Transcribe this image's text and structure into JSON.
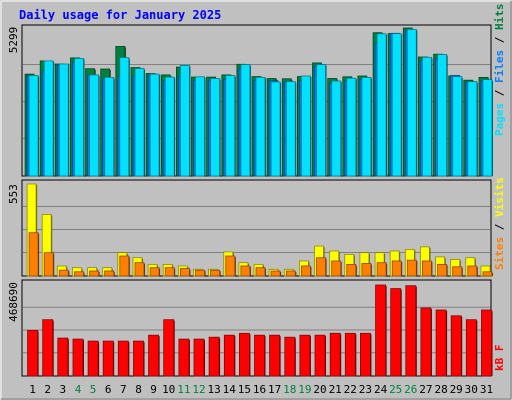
{
  "chart_data": [
    {
      "type": "bar",
      "title": "Daily usage for January 2025",
      "categories": [
        "1",
        "2",
        "3",
        "4",
        "5",
        "6",
        "7",
        "8",
        "9",
        "10",
        "11",
        "12",
        "13",
        "14",
        "15",
        "16",
        "17",
        "18",
        "19",
        "20",
        "21",
        "22",
        "23",
        "24",
        "25",
        "26",
        "27",
        "28",
        "29",
        "30",
        "31"
      ],
      "weekend_days": [
        4,
        5,
        11,
        12,
        18,
        19,
        25,
        26
      ],
      "y_max_label": "5299",
      "ylim": [
        0,
        5299
      ],
      "legend": [
        "Pages",
        "Files",
        "Hits"
      ],
      "series": [
        {
          "name": "Hits",
          "color": "#008040",
          "values": [
            3650,
            4120,
            4010,
            4230,
            3840,
            3830,
            4640,
            3880,
            3670,
            3620,
            3900,
            3540,
            3540,
            3620,
            4000,
            3560,
            3490,
            3480,
            3560,
            4050,
            3490,
            3550,
            3580,
            5130,
            5100,
            5299,
            4260,
            4360,
            3580,
            3430,
            3530
          ]
        },
        {
          "name": "Files",
          "color": "#0080ff",
          "values": [
            3590,
            3770,
            3960,
            4070,
            3610,
            3480,
            3560,
            3570,
            3590,
            3410,
            3560,
            3420,
            3410,
            3470,
            3840,
            3420,
            3410,
            3370,
            3410,
            3940,
            3310,
            3410,
            3460,
            4750,
            5110,
            5200,
            4130,
            4210,
            3600,
            3350,
            3410
          ]
        },
        {
          "name": "Pages",
          "color": "#00e0ff",
          "values": [
            3600,
            4120,
            4010,
            4210,
            3620,
            3530,
            4240,
            3850,
            3650,
            3540,
            3960,
            3550,
            3490,
            3600,
            3990,
            3530,
            3370,
            3380,
            3580,
            3990,
            3400,
            3500,
            3530,
            5090,
            5100,
            5250,
            4250,
            4350,
            3560,
            3380,
            3450
          ]
        }
      ]
    },
    {
      "type": "bar",
      "y_max_label": "553",
      "ylim": [
        0,
        553
      ],
      "legend": [
        "Sites",
        "Visits"
      ],
      "series": [
        {
          "name": "Visits",
          "color": "#ffff00",
          "values": [
            553,
            370,
            60,
            50,
            50,
            50,
            140,
            110,
            70,
            70,
            60,
            40,
            40,
            145,
            80,
            70,
            40,
            40,
            90,
            180,
            150,
            130,
            140,
            140,
            150,
            160,
            175,
            115,
            100,
            110,
            60
          ]
        },
        {
          "name": "Sites",
          "color": "#ff8000",
          "values": [
            260,
            140,
            35,
            25,
            30,
            30,
            120,
            80,
            50,
            50,
            45,
            35,
            35,
            120,
            60,
            50,
            30,
            30,
            60,
            110,
            90,
            70,
            75,
            80,
            90,
            95,
            90,
            70,
            55,
            60,
            25
          ]
        }
      ]
    },
    {
      "type": "bar",
      "y_max_label": "468690",
      "ylim": [
        0,
        468690
      ],
      "legend": [
        "kB F"
      ],
      "series": [
        {
          "name": "kB F",
          "color": "#ff0000",
          "values": [
            235000,
            290000,
            195000,
            190000,
            180000,
            180000,
            180000,
            180000,
            210000,
            290000,
            190000,
            190000,
            200000,
            210000,
            220000,
            210000,
            210000,
            200000,
            210000,
            210000,
            220000,
            220000,
            220000,
            468690,
            450000,
            465000,
            350000,
            340000,
            310000,
            290000,
            340000
          ]
        }
      ]
    }
  ]
}
